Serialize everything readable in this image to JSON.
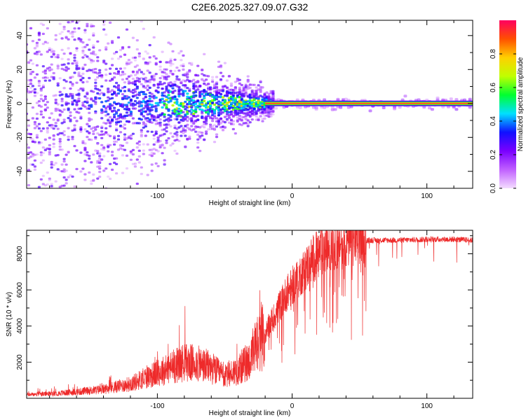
{
  "title": "C2E6.2025.327.09.07.G32",
  "chart_data": [
    {
      "type": "heatmap",
      "xlabel": "Height of straight line (km)",
      "ylabel": "Frequency (Hz)",
      "xlim": [
        -197,
        134
      ],
      "ylim": [
        -50,
        49
      ],
      "xticks": [
        -100,
        0,
        100
      ],
      "yticks": [
        -40,
        -20,
        0,
        20,
        40
      ],
      "grid": false,
      "description_of_data": "spectrogram: broad scatter at low heights narrowing to a single line near 0 Hz above about -20 km",
      "carrier_line": {
        "from_x": -20,
        "to_x": 134,
        "frequency": 0,
        "amplitude": 0.95
      },
      "colorbar": {
        "label": "Normalized spectral amplitude",
        "range": [
          0,
          1
        ],
        "ticks": [
          0.0,
          0.2,
          0.4,
          0.6,
          0.8
        ],
        "tick_labels": [
          "0.0",
          "0.2",
          "0.4",
          "0.6",
          "0.8"
        ],
        "colors": [
          "#f4dcff",
          "#c060ff",
          "#7a00ff",
          "#1010ff",
          "#00e0ff",
          "#00ff30",
          "#c0ff00",
          "#ffd000",
          "#ff5000",
          "#ff0060"
        ]
      }
    },
    {
      "type": "line",
      "xlabel": "Height of straight line (km)",
      "ylabel": "SNR (10 * v/v)",
      "xlim": [
        -197,
        134
      ],
      "ylim": [
        0,
        9300
      ],
      "xticks": [
        -100,
        0,
        100
      ],
      "yticks": [
        2000,
        4000,
        6000,
        8000
      ],
      "color": "#ee2a2a",
      "series": [
        {
          "name": "SNR",
          "x": [
            -197,
            -180,
            -160,
            -140,
            -120,
            -100,
            -90,
            -80,
            -70,
            -60,
            -50,
            -40,
            -30,
            -25,
            -20,
            -15,
            -10,
            -5,
            0,
            5,
            10,
            15,
            20,
            25,
            30,
            35,
            40,
            50,
            60,
            80,
            100,
            120,
            134
          ],
          "values": [
            200,
            250,
            350,
            500,
            800,
            1400,
            1700,
            2000,
            1900,
            1700,
            1200,
            1600,
            2200,
            3000,
            3600,
            4300,
            5000,
            5700,
            6200,
            6700,
            7200,
            7700,
            8000,
            8300,
            8500,
            8600,
            8650,
            8700,
            8750,
            8750,
            8800,
            8800,
            8750
          ]
        }
      ]
    }
  ]
}
